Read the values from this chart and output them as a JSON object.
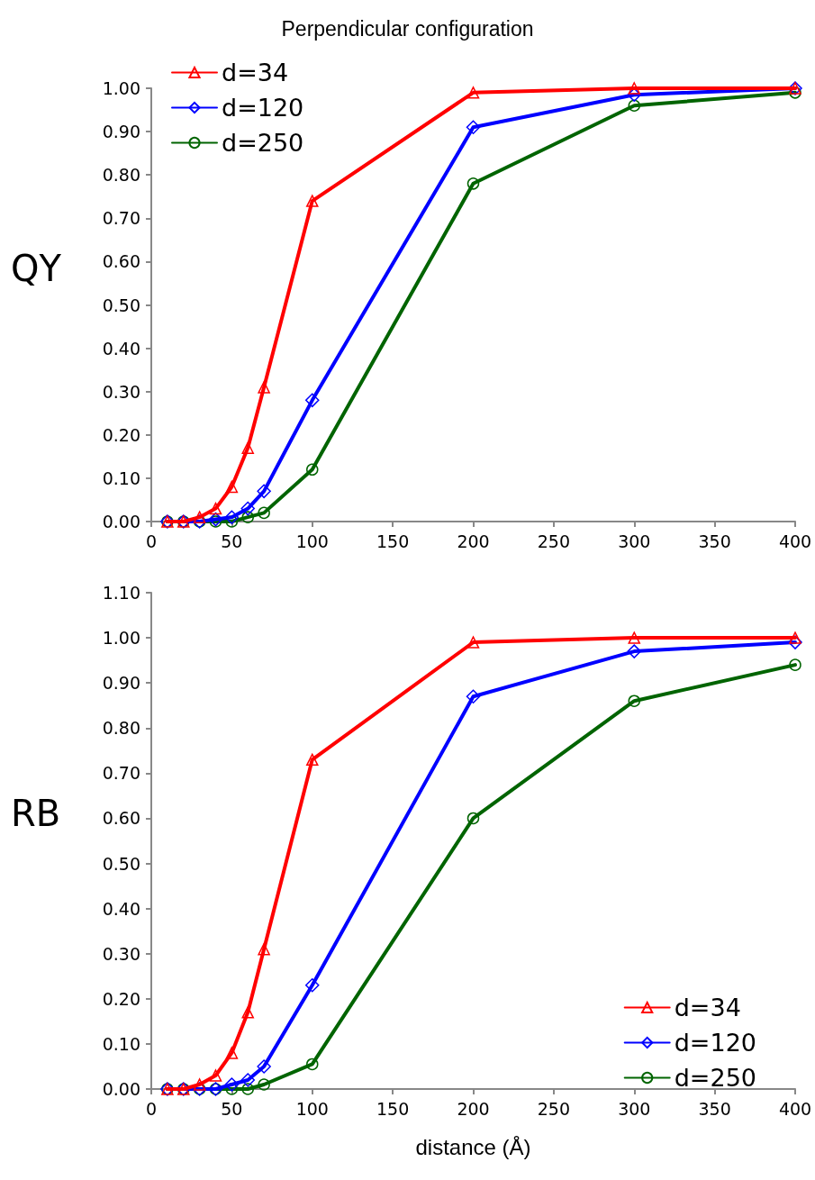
{
  "chart_data": [
    {
      "type": "line",
      "title": "Perpendicular configuration",
      "ylabel": "QY",
      "x": [
        10,
        20,
        30,
        40,
        50,
        60,
        70,
        100,
        200,
        300,
        400
      ],
      "xlim": [
        0,
        400
      ],
      "xticks": [
        0,
        50,
        100,
        150,
        200,
        250,
        300,
        350,
        400
      ],
      "ylim": [
        0,
        1
      ],
      "yticks": [
        {
          "value": 0,
          "label": "0.00"
        },
        {
          "value": 0.1,
          "label": "0.10"
        },
        {
          "value": 0.2,
          "label": "0.20"
        },
        {
          "value": 0.3,
          "label": "0.30"
        },
        {
          "value": 0.4,
          "label": "0.40"
        },
        {
          "value": 0.5,
          "label": "0.50"
        },
        {
          "value": 0.6,
          "label": "0.60"
        },
        {
          "value": 0.7,
          "label": "0.70"
        },
        {
          "value": 0.8,
          "label": "0.80"
        },
        {
          "value": 0.9,
          "label": "0.90"
        },
        {
          "value": 1,
          "label": "1.00"
        }
      ],
      "grid": false,
      "legend": "top left",
      "series": [
        {
          "name": "d=34",
          "color": "#ff0000",
          "marker": "triangle",
          "values": [
            0,
            0,
            0.01,
            0.03,
            0.08,
            0.17,
            0.31,
            0.74,
            0.99,
            1.0,
            1.0
          ]
        },
        {
          "name": "d=120",
          "color": "#0000ff",
          "marker": "diamond",
          "values": [
            0,
            0,
            0,
            0.005,
            0.01,
            0.03,
            0.07,
            0.28,
            0.91,
            0.985,
            1.0
          ]
        },
        {
          "name": "d=250",
          "color": "#006400",
          "marker": "circle",
          "values": [
            0,
            0,
            0,
            0,
            0,
            0.01,
            0.02,
            0.12,
            0.78,
            0.96,
            0.99
          ]
        }
      ]
    },
    {
      "type": "line",
      "ylabel": "RB",
      "xlabel": "distance (Å)",
      "x": [
        10,
        20,
        30,
        40,
        50,
        60,
        70,
        100,
        200,
        300,
        400
      ],
      "xlim": [
        0,
        400
      ],
      "xticks": [
        0,
        50,
        100,
        150,
        200,
        250,
        300,
        350,
        400
      ],
      "ylim": [
        0,
        1.1
      ],
      "yticks": [
        {
          "value": 0,
          "label": "0.00"
        },
        {
          "value": 0.1,
          "label": "0.10"
        },
        {
          "value": 0.2,
          "label": "0.20"
        },
        {
          "value": 0.3,
          "label": "0.30"
        },
        {
          "value": 0.4,
          "label": "0.40"
        },
        {
          "value": 0.5,
          "label": "0.50"
        },
        {
          "value": 0.6,
          "label": "0.60"
        },
        {
          "value": 0.7,
          "label": "0.70"
        },
        {
          "value": 0.8,
          "label": "0.80"
        },
        {
          "value": 0.9,
          "label": "0.90"
        },
        {
          "value": 1,
          "label": "1.00"
        },
        {
          "value": 1.1,
          "label": "1.10"
        }
      ],
      "grid": false,
      "legend": "bottom right",
      "series": [
        {
          "name": "d=34",
          "color": "#ff0000",
          "marker": "triangle",
          "values": [
            0,
            0,
            0.01,
            0.03,
            0.08,
            0.17,
            0.31,
            0.73,
            0.99,
            1.0,
            1.0
          ]
        },
        {
          "name": "d=120",
          "color": "#0000ff",
          "marker": "diamond",
          "values": [
            0,
            0,
            0,
            0,
            0.01,
            0.02,
            0.05,
            0.23,
            0.87,
            0.97,
            0.99
          ]
        },
        {
          "name": "d=250",
          "color": "#006400",
          "marker": "circle",
          "values": [
            0,
            0,
            0,
            0,
            0,
            0,
            0.01,
            0.055,
            0.6,
            0.86,
            0.94
          ]
        }
      ]
    }
  ]
}
